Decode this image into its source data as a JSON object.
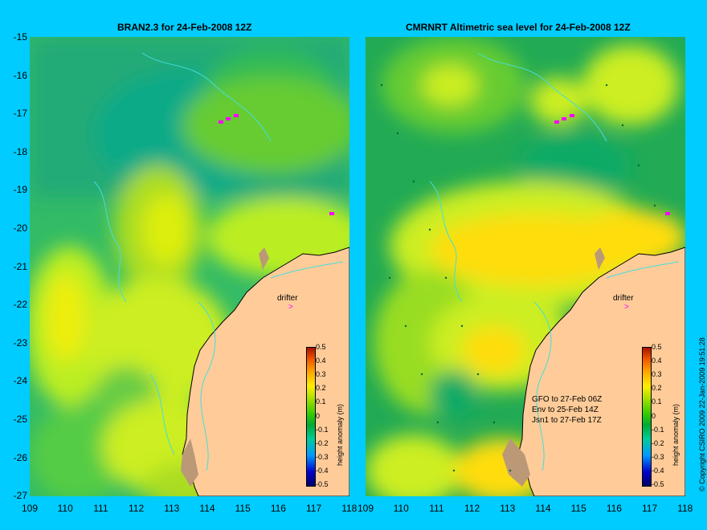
{
  "left_panel": {
    "title": "BRAN2.3 for 24-Feb-2008 12Z",
    "drifter_label": "drifter",
    "colorbar_label": "height anomaly (m)"
  },
  "right_panel": {
    "title": "CMRNRT Altimetric sea level  for 24-Feb-2008 12Z",
    "drifter_label": "drifter",
    "colorbar_label": "height anomaly (m)",
    "satellite_legend": [
      "GFO to 27-Feb 06Z",
      "Env to 25-Feb 14Z",
      "Jsn1 to 27-Feb 17Z"
    ]
  },
  "y_ticks": [
    "-15",
    "-16",
    "-17",
    "-18",
    "-19",
    "-20",
    "-21",
    "-22",
    "-23",
    "-24",
    "-25",
    "-26",
    "-27"
  ],
  "x_ticks": [
    "109",
    "110",
    "111",
    "112",
    "113",
    "114",
    "115",
    "116",
    "117",
    "118"
  ],
  "colorbar_ticks": [
    "0.5",
    "0.4",
    "0.3",
    "0.2",
    "0.1",
    "0",
    "-0.1",
    "-0.2",
    "-0.3",
    "-0.4",
    "-0.5"
  ],
  "copyright": "© Copyright CSIRO 2009   22-Jan-2009 19:51:28",
  "colors": {
    "background": "#00ccff",
    "land": "#ffcc99",
    "drifter_marker": "#ff00ff"
  }
}
